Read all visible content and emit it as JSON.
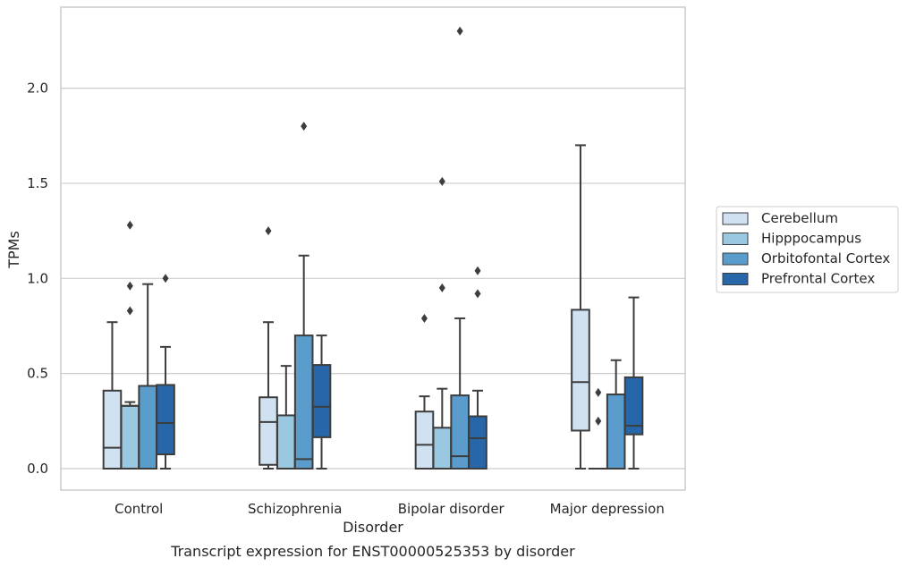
{
  "chart_data": {
    "type": "box",
    "xlabel": "Disorder",
    "ylabel": "TPMs",
    "caption": "Transcript expression for ENST00000525353 by disorder",
    "ylim": [
      -0.11,
      2.42
    ],
    "yticks": [
      0.0,
      0.5,
      1.0,
      1.5,
      2.0
    ],
    "ytick_labels": [
      "0.0",
      "0.5",
      "1.0",
      "1.5",
      "2.0"
    ],
    "grid": "horizontal",
    "legend_placement": "right",
    "categories": [
      "Control",
      "Schizophrenia",
      "Bipolar disorder",
      "Major depression"
    ],
    "series": [
      {
        "name": "Cerebellum",
        "color": "#d0e1f2",
        "boxes": [
          {
            "whislo": 0.0,
            "q1": 0.0,
            "med": 0.11,
            "q3": 0.41,
            "whishi": 0.77,
            "fliers": []
          },
          {
            "whislo": 0.0,
            "q1": 0.02,
            "med": 0.245,
            "q3": 0.375,
            "whishi": 0.77,
            "fliers": [
              1.25
            ]
          },
          {
            "whislo": 0.0,
            "q1": 0.0,
            "med": 0.125,
            "q3": 0.3,
            "whishi": 0.38,
            "fliers": [
              0.79
            ]
          },
          {
            "whislo": 0.0,
            "q1": 0.2,
            "med": 0.455,
            "q3": 0.835,
            "whishi": 1.7,
            "fliers": []
          }
        ]
      },
      {
        "name": "Hipppocampus",
        "color": "#9ac8e0",
        "boxes": [
          {
            "whislo": 0.0,
            "q1": 0.0,
            "med": 0.33,
            "q3": 0.33,
            "whishi": 0.35,
            "fliers": [
              0.83,
              0.96,
              1.28
            ]
          },
          {
            "whislo": 0.0,
            "q1": 0.0,
            "med": 0.0,
            "q3": 0.28,
            "whishi": 0.54,
            "fliers": []
          },
          {
            "whislo": 0.0,
            "q1": 0.0,
            "med": 0.0,
            "q3": 0.215,
            "whishi": 0.42,
            "fliers": [
              0.95,
              1.51
            ]
          },
          {
            "whislo": 0.0,
            "q1": 0.0,
            "med": 0.0,
            "q3": 0.0,
            "whishi": 0.0,
            "fliers": [
              0.25,
              0.4
            ]
          }
        ]
      },
      {
        "name": "Orbitofontal Cortex",
        "color": "#5a9ccb",
        "boxes": [
          {
            "whislo": 0.0,
            "q1": 0.0,
            "med": 0.0,
            "q3": 0.435,
            "whishi": 0.97,
            "fliers": []
          },
          {
            "whislo": 0.0,
            "q1": 0.0,
            "med": 0.05,
            "q3": 0.7,
            "whishi": 1.12,
            "fliers": [
              1.8
            ]
          },
          {
            "whislo": 0.0,
            "q1": 0.0,
            "med": 0.065,
            "q3": 0.385,
            "whishi": 0.79,
            "fliers": [
              2.3
            ]
          },
          {
            "whislo": 0.0,
            "q1": 0.0,
            "med": 0.0,
            "q3": 0.39,
            "whishi": 0.57,
            "fliers": []
          }
        ]
      },
      {
        "name": "Prefrontal Cortex",
        "color": "#2767a9",
        "boxes": [
          {
            "whislo": 0.0,
            "q1": 0.075,
            "med": 0.24,
            "q3": 0.44,
            "whishi": 0.64,
            "fliers": [
              1.0
            ]
          },
          {
            "whislo": 0.0,
            "q1": 0.165,
            "med": 0.325,
            "q3": 0.545,
            "whishi": 0.7,
            "fliers": []
          },
          {
            "whislo": 0.0,
            "q1": 0.0,
            "med": 0.16,
            "q3": 0.275,
            "whishi": 0.41,
            "fliers": [
              0.92,
              1.04
            ]
          },
          {
            "whislo": 0.0,
            "q1": 0.18,
            "med": 0.225,
            "q3": 0.48,
            "whishi": 0.9,
            "fliers": []
          }
        ]
      }
    ]
  }
}
